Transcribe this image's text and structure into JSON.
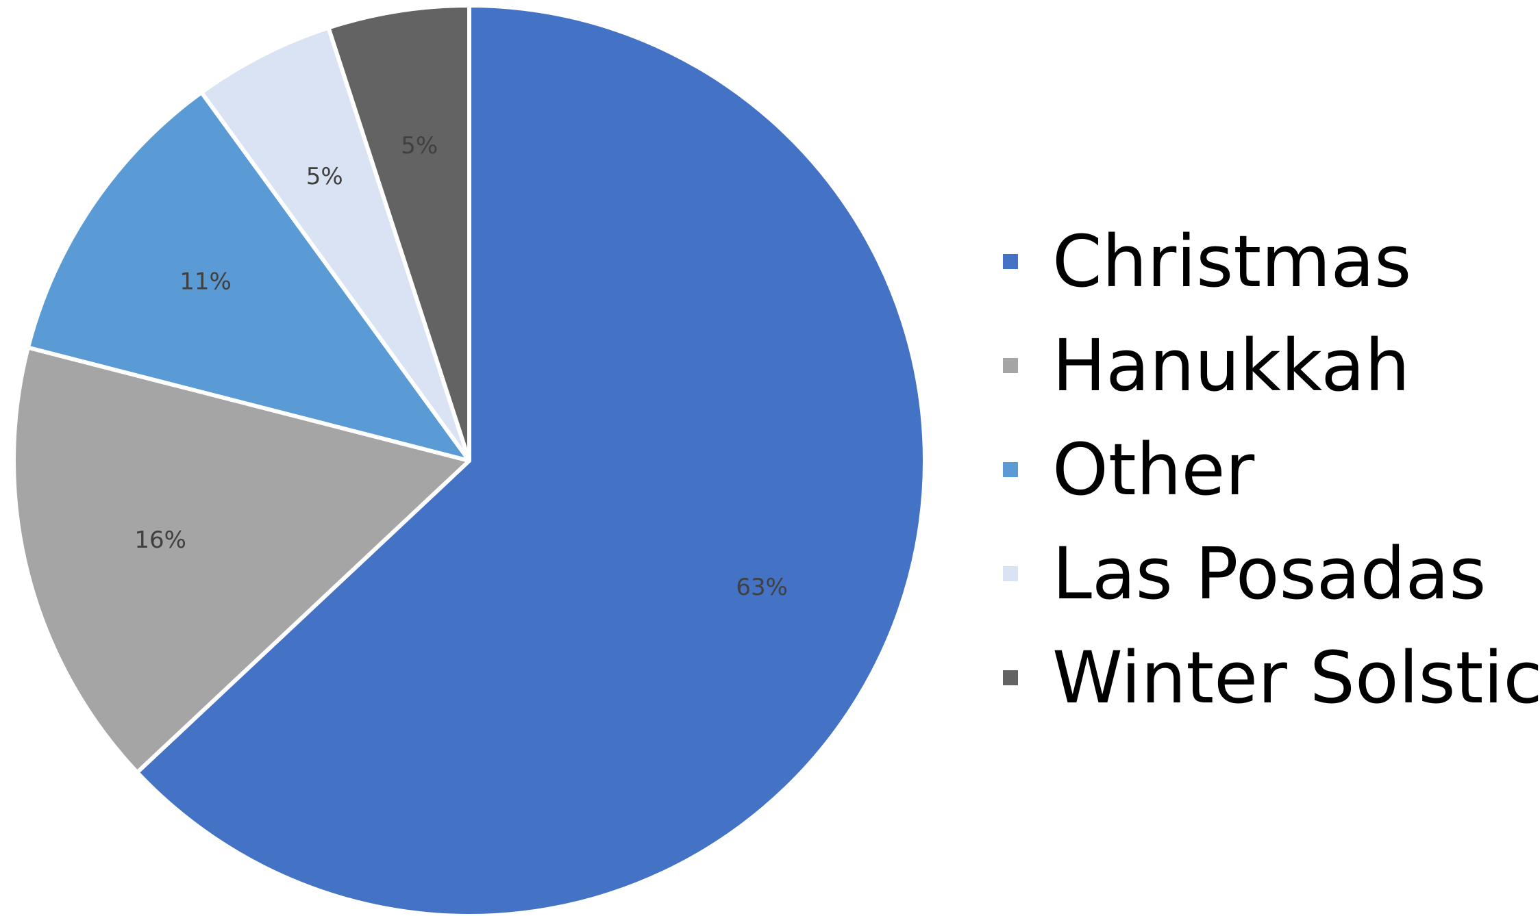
{
  "chart_data": {
    "type": "pie",
    "categories": [
      "Christmas",
      "Hanukkah",
      "Other",
      "Las Posadas",
      "Winter Solstice"
    ],
    "values": [
      63,
      16,
      11,
      5,
      5
    ],
    "labels": [
      "63%",
      "16%",
      "11%",
      "5%",
      "5%"
    ],
    "colors": [
      "#4472C4",
      "#A5A5A5",
      "#5B9BD5",
      "#DAE3F3",
      "#636363"
    ],
    "start": "12 o'clock",
    "direction": "clockwise",
    "legend_position": "right",
    "data_labels": "inside-slices"
  }
}
